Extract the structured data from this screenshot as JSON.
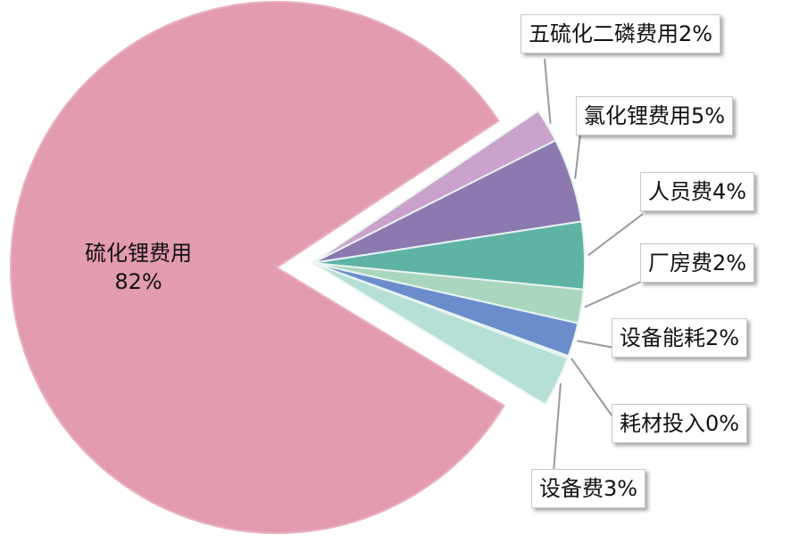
{
  "chart_data": {
    "type": "pie",
    "exploded": true,
    "slices": [
      {
        "label": "五硫化二磷费用",
        "value": 2,
        "display": "五硫化二磷费用2%",
        "color": "#c9a3c9"
      },
      {
        "label": "氯化锂费用",
        "value": 5,
        "display": "氯化锂费用5%",
        "color": "#8c79b0"
      },
      {
        "label": "人员费",
        "value": 4,
        "display": "人员费4%",
        "color": "#5fb3a4"
      },
      {
        "label": "厂房费",
        "value": 2,
        "display": "厂房费2%",
        "color": "#a9d6bc"
      },
      {
        "label": "设备能耗",
        "value": 2,
        "display": "设备能耗2%",
        "color": "#6b8dcc"
      },
      {
        "label": "耗材投入",
        "value": 0,
        "display": "耗材投入0%",
        "color": "#dfeff0"
      },
      {
        "label": "设备费",
        "value": 3,
        "display": "设备费3%",
        "color": "#b6dfd6"
      },
      {
        "label": "硫化锂费用",
        "value": 82,
        "display": "82%",
        "color": "#e39bb0"
      }
    ]
  }
}
